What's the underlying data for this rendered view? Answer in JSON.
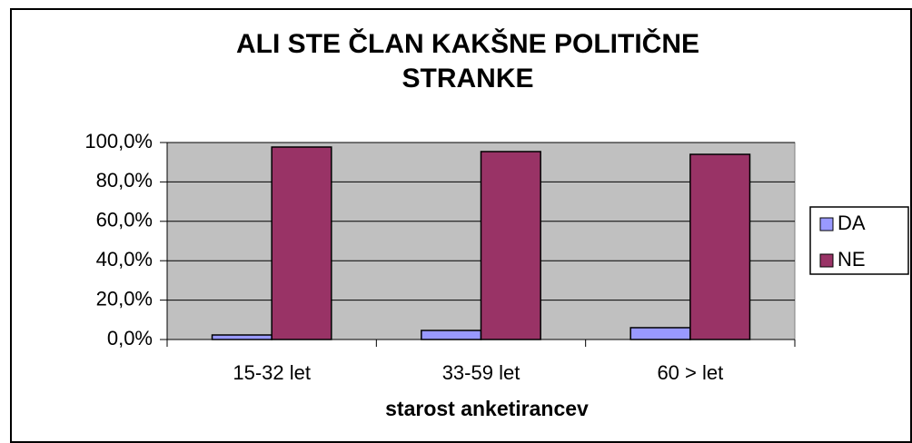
{
  "chart_data": {
    "type": "bar",
    "title": [
      "ALI STE ČLAN KAKŠNE POLITIČNE",
      "STRANKE"
    ],
    "x_label": "starost anketirancev",
    "categories": [
      "15-32 let",
      "33-59 let",
      "60 > let"
    ],
    "series": [
      {
        "name": "DA",
        "color": "#9999ff",
        "values": [
          2.3,
          4.6,
          6.0
        ]
      },
      {
        "name": "NE",
        "color": "#993366",
        "values": [
          97.7,
          95.4,
          94.0
        ]
      }
    ],
    "ylim": [
      0,
      100
    ],
    "yticks": [
      {
        "value": 0,
        "label": "0,0%"
      },
      {
        "value": 20,
        "label": "20,0%"
      },
      {
        "value": 40,
        "label": "40,0%"
      },
      {
        "value": 60,
        "label": "60,0%"
      },
      {
        "value": 80,
        "label": "80,0%"
      },
      {
        "value": 100,
        "label": "100,0%"
      }
    ],
    "grid": true,
    "legend": "right",
    "plot_background": "#c0c0c0"
  }
}
